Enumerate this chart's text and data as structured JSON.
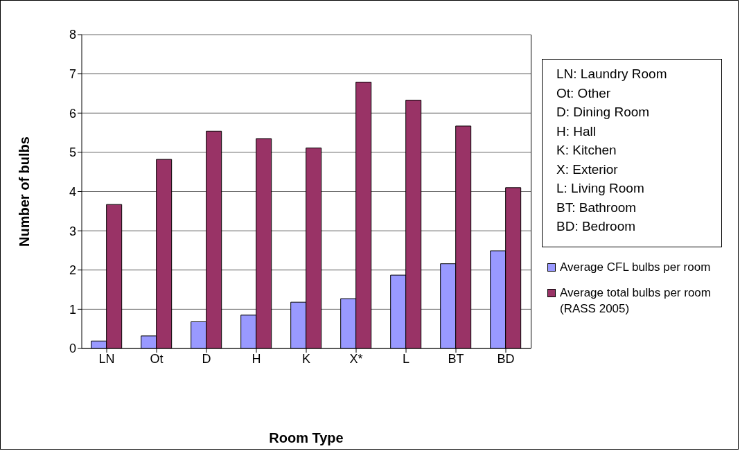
{
  "chart_data": {
    "type": "bar",
    "xlabel": "Room Type",
    "ylabel": "Number of bulbs",
    "categories": [
      "LN",
      "Ot",
      "D",
      "H",
      "K",
      "X*",
      "L",
      "BT",
      "BD"
    ],
    "series": [
      {
        "name": "Average CFL bulbs per room",
        "color": "#9999ff",
        "values": [
          0.19,
          0.32,
          0.68,
          0.85,
          1.18,
          1.27,
          1.87,
          2.16,
          2.49
        ]
      },
      {
        "name": "Average total bulbs per room (RASS 2005)",
        "color": "#993366",
        "values": [
          3.67,
          4.82,
          5.54,
          5.35,
          5.11,
          6.79,
          6.33,
          5.67,
          4.1
        ]
      }
    ],
    "ylim": [
      0,
      8
    ],
    "yticks": [
      0,
      1,
      2,
      3,
      4,
      5,
      6,
      7,
      8
    ],
    "grid": "y",
    "legend": "right",
    "annotations": [
      "LN: Laundry Room",
      "Ot: Other",
      "D: Dining Room",
      "H: Hall",
      "K: Kitchen",
      "X: Exterior",
      "L: Living Room",
      "BT: Bathroom",
      "BD: Bedroom"
    ]
  }
}
